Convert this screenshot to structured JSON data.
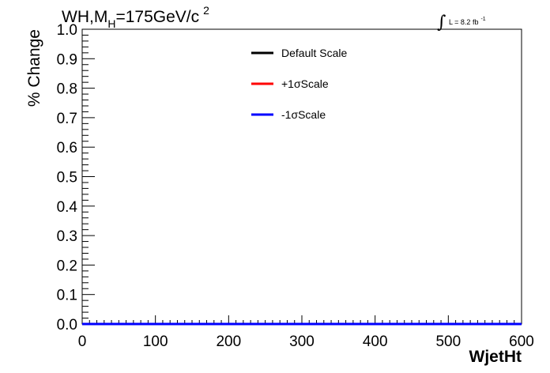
{
  "chart_data": {
    "type": "line",
    "title": {
      "main": "WH,M",
      "subscript": "H",
      "rest": "=175GeV/c",
      "superscript": "2"
    },
    "luminosity": {
      "text": "L = 8.2 fb",
      "superscript": "-1"
    },
    "xlabel": "WjetHt",
    "ylabel": "% Change",
    "xlim": [
      0,
      600
    ],
    "ylim": [
      0,
      1
    ],
    "x_ticks": [
      "0",
      "100",
      "200",
      "300",
      "400",
      "500",
      "600"
    ],
    "x_tick_values": [
      0,
      100,
      200,
      300,
      400,
      500,
      600
    ],
    "y_ticks": [
      "0.0",
      "0.1",
      "0.2",
      "0.3",
      "0.4",
      "0.5",
      "0.6",
      "0.7",
      "0.8",
      "0.9",
      "1.0"
    ],
    "y_tick_values": [
      0,
      0.1,
      0.2,
      0.3,
      0.4,
      0.5,
      0.6,
      0.7,
      0.8,
      0.9,
      1.0
    ],
    "grid": false,
    "legend_position": "top-center",
    "series": [
      {
        "name": "Default Scale",
        "color": "#000000",
        "x": [
          0,
          600
        ],
        "y": [
          0,
          0
        ]
      },
      {
        "name": "+1σScale",
        "color": "#ff0000",
        "x": [
          0,
          600
        ],
        "y": [
          0,
          0
        ]
      },
      {
        "name": "-1σScale",
        "color": "#0000ff",
        "x": [
          0,
          600
        ],
        "y": [
          0,
          0
        ]
      }
    ]
  }
}
